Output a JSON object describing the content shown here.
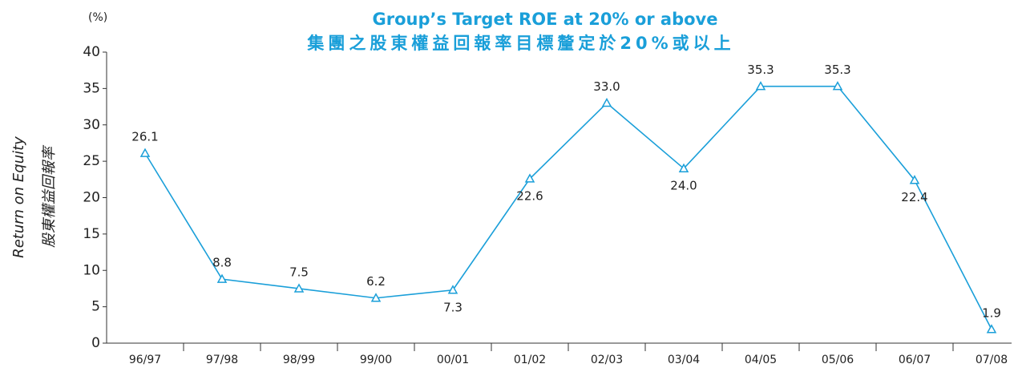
{
  "chart_data": {
    "type": "line",
    "title": "Group’s Target ROE at 20% or above",
    "subtitle": "集團之股東權益回報率目標釐定於20%或以上",
    "y_unit": "(%)",
    "y_label": "Return on Equity",
    "y_label_zh": "股東權益回報率",
    "categories": [
      "96/97",
      "97/98",
      "98/99",
      "99/00",
      "00/01",
      "01/02",
      "02/03",
      "03/04",
      "04/05",
      "05/06",
      "06/07",
      "07/08"
    ],
    "series": [
      {
        "name": "Return on Equity",
        "color": "#1a9fd9",
        "values": [
          26.1,
          8.8,
          7.5,
          6.2,
          7.3,
          22.6,
          33.0,
          24.0,
          35.3,
          35.3,
          22.4,
          1.9
        ],
        "value_labels": [
          "26.1",
          "8.8",
          "7.5",
          "6.2",
          "7.3",
          "22.6",
          "33.0",
          "24.0",
          "35.3",
          "35.3",
          "22.4",
          "1.9"
        ]
      }
    ],
    "ylim": [
      0,
      40
    ],
    "yticks": [
      0,
      5,
      10,
      15,
      20,
      25,
      30,
      35,
      40
    ],
    "grid": false
  }
}
